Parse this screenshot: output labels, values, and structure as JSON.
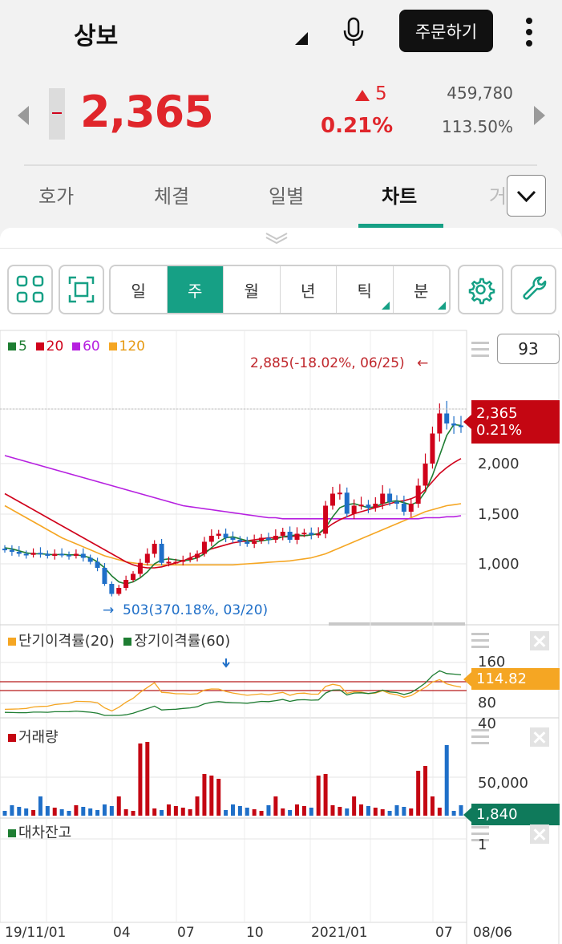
{
  "header": {
    "stock_name": "상보",
    "order_button": "주문하기"
  },
  "quote": {
    "price": "2,365",
    "change": "5",
    "change_pct": "0.21%",
    "volume": "459,780",
    "volume_pct": "113.50%"
  },
  "tabs": [
    "호가",
    "체결",
    "일별",
    "차트",
    "거"
  ],
  "active_tab": "차트",
  "periods": [
    {
      "label": "일",
      "corner": false
    },
    {
      "label": "주",
      "corner": false,
      "active": true
    },
    {
      "label": "월",
      "corner": false
    },
    {
      "label": "년",
      "corner": false
    },
    {
      "label": "틱",
      "corner": true
    },
    {
      "label": "분",
      "corner": true
    }
  ],
  "colors": {
    "up": "#e0262b",
    "accent": "#16a085",
    "down": "#1f6fc8"
  },
  "icons": [
    "grid-layout-icon",
    "fullscreen-icon",
    "settings-gear-icon",
    "wrench-icon",
    "microphone-icon",
    "more-vertical-icon",
    "chevron-down-icon"
  ],
  "price_chart": {
    "legend": [
      {
        "label": "5",
        "color": "#1e7d32"
      },
      {
        "label": "20",
        "color": "#d0021b"
      },
      {
        "label": "60",
        "color": "#b620e0"
      },
      {
        "label": "120",
        "color": "#f5a623"
      }
    ],
    "zoom_value": "93",
    "max_annotation": "2,885(-18.02%, 06/25)",
    "min_annotation": "503(370.18%, 03/20)",
    "y_ticks": [
      "2,000",
      "1,500",
      "1,000"
    ],
    "current_tag_price": "2,365",
    "current_tag_pct": "0.21%"
  },
  "disparity_chart": {
    "legend_short": "단기이격률(20)",
    "legend_long": "장기이격률(60)",
    "y_ticks": [
      "160",
      "80",
      "40"
    ],
    "current_tag": "114.82"
  },
  "volume_chart": {
    "legend": "거래량",
    "y_tick": "50,000",
    "current_tag": "1,840"
  },
  "loan_chart": {
    "legend": "대차잔고",
    "y_tick": "1"
  },
  "x_axis": [
    "19/11/01",
    "04",
    "07",
    "10",
    "2021/01",
    "07",
    "08/06"
  ],
  "chart_data": {
    "type": "candlestick",
    "weekly_close": [
      1140,
      1120,
      1100,
      1090,
      1110,
      1100,
      1080,
      1100,
      1090,
      1080,
      1100,
      1060,
      1020,
      960,
      800,
      700,
      760,
      840,
      900,
      1010,
      1100,
      1200,
      1010,
      1020,
      1020,
      1040,
      1060,
      1100,
      1220,
      1280,
      1300,
      1260,
      1240,
      1220,
      1200,
      1230,
      1260,
      1240,
      1280,
      1320,
      1240,
      1300,
      1310,
      1290,
      1300,
      1580,
      1700,
      1710,
      1500,
      1580,
      1590,
      1560,
      1600,
      1700,
      1620,
      1600,
      1520,
      1600,
      1780,
      2000,
      2300,
      2500,
      2400,
      2380,
      2365
    ],
    "ma5": [
      1160,
      1150,
      1130,
      1110,
      1100,
      1100,
      1095,
      1090,
      1095,
      1090,
      1090,
      1080,
      1060,
      1020,
      960,
      880,
      820,
      800,
      820,
      860,
      920,
      1000,
      1040,
      1050,
      1040,
      1030,
      1040,
      1060,
      1100,
      1160,
      1220,
      1260,
      1270,
      1250,
      1230,
      1220,
      1230,
      1240,
      1250,
      1270,
      1280,
      1290,
      1280,
      1290,
      1300,
      1360,
      1470,
      1560,
      1590,
      1600,
      1580,
      1560,
      1570,
      1600,
      1620,
      1630,
      1610,
      1590,
      1620,
      1720,
      1880,
      2080,
      2280,
      2390,
      2380
    ],
    "ma20": [
      1700,
      1660,
      1620,
      1580,
      1540,
      1500,
      1460,
      1420,
      1380,
      1340,
      1300,
      1260,
      1220,
      1180,
      1140,
      1100,
      1060,
      1020,
      990,
      970,
      960,
      960,
      970,
      990,
      1010,
      1030,
      1060,
      1090,
      1120,
      1150,
      1170,
      1190,
      1210,
      1220,
      1230,
      1240,
      1250,
      1260,
      1260,
      1270,
      1270,
      1280,
      1280,
      1290,
      1300,
      1350,
      1400,
      1440,
      1470,
      1500,
      1520,
      1540,
      1560,
      1580,
      1600,
      1620,
      1630,
      1650,
      1680,
      1740,
      1820,
      1900,
      1960,
      2010,
      2050
    ],
    "ma60": [
      2080,
      2060,
      2040,
      2020,
      2000,
      1980,
      1960,
      1940,
      1920,
      1900,
      1880,
      1860,
      1840,
      1820,
      1800,
      1780,
      1760,
      1740,
      1720,
      1700,
      1680,
      1660,
      1640,
      1620,
      1600,
      1580,
      1570,
      1560,
      1550,
      1540,
      1530,
      1520,
      1510,
      1500,
      1490,
      1480,
      1470,
      1460,
      1460,
      1450,
      1450,
      1450,
      1450,
      1450,
      1450,
      1450,
      1450,
      1450,
      1450,
      1450,
      1450,
      1450,
      1450,
      1450,
      1450,
      1450,
      1450,
      1450,
      1450,
      1460,
      1460,
      1460,
      1470,
      1470,
      1480
    ],
    "ma120": [
      1580,
      1540,
      1500,
      1460,
      1420,
      1380,
      1340,
      1300,
      1260,
      1230,
      1200,
      1170,
      1140,
      1110,
      1080,
      1060,
      1040,
      1020,
      1010,
      1000,
      990,
      990,
      990,
      990,
      990,
      990,
      990,
      990,
      990,
      990,
      990,
      990,
      990,
      995,
      1000,
      1005,
      1010,
      1015,
      1020,
      1025,
      1030,
      1040,
      1050,
      1060,
      1080,
      1100,
      1130,
      1160,
      1190,
      1220,
      1250,
      1280,
      1310,
      1340,
      1370,
      1400,
      1430,
      1460,
      1490,
      1520,
      1540,
      1560,
      1580,
      1590,
      1600
    ]
  }
}
